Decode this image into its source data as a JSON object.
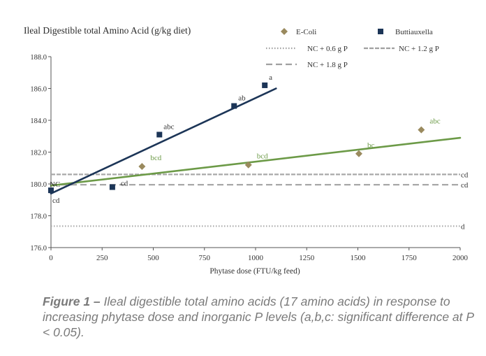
{
  "chart_data": {
    "type": "scatter",
    "title": "Ileal Digestible total Amino Acid  (g/kg diet)",
    "xlabel": "Phytase dose (FTU/kg feed)",
    "ylabel": "",
    "xlim": [
      0,
      2000
    ],
    "ylim": [
      176.0,
      188.0
    ],
    "x_ticks": [
      0,
      250,
      500,
      750,
      1000,
      1250,
      1500,
      1750,
      2000
    ],
    "y_ticks": [
      "176.0",
      "178.0",
      "180.0",
      "182.0",
      "184.0",
      "186.0",
      "188.0"
    ],
    "grid": false,
    "legend_position": "top-right",
    "series": [
      {
        "name": "E-Coli",
        "color": "#9a8a5e",
        "marker": "diamond",
        "points": [
          {
            "x": 445,
            "y": 181.1,
            "label": "bcd"
          },
          {
            "x": 965,
            "y": 181.2,
            "label": "bcd"
          },
          {
            "x": 1505,
            "y": 181.9,
            "label": "bc"
          },
          {
            "x": 1810,
            "y": 183.4,
            "label": "abc"
          }
        ],
        "trend": {
          "color": "#6c9a47",
          "x0": 0,
          "y0": 179.9,
          "x1": 2000,
          "y1": 182.9
        }
      },
      {
        "name": "Buttiauxella",
        "color": "#1c3557",
        "marker": "square",
        "points": [
          {
            "x": 0,
            "y": 179.6,
            "label": "cd"
          },
          {
            "x": 300,
            "y": 179.8,
            "label": "cd"
          },
          {
            "x": 530,
            "y": 183.1,
            "label": "abc"
          },
          {
            "x": 895,
            "y": 184.9,
            "label": "ab"
          },
          {
            "x": 1045,
            "y": 186.2,
            "label": "a"
          }
        ],
        "trend": {
          "color": "#1c3557",
          "x0": 0,
          "y0": 179.4,
          "x1": 1100,
          "y1": 186.0
        }
      }
    ],
    "reference_lines": [
      {
        "name": "NC + 0.6 g P",
        "y": 177.35,
        "style": "dotted",
        "label": "d"
      },
      {
        "name": "NC + 1.2 g P",
        "y": 180.6,
        "style": "dashed",
        "label": "cd"
      },
      {
        "name": "NC + 1.8 g P",
        "y": 179.95,
        "style": "dashed-long",
        "label": "cd"
      }
    ],
    "annotation_nc": "NC"
  },
  "caption": {
    "figure_label": "Figure 1 –",
    "text": " Ileal digestible total amino acids (17 amino acids) in response to increasing phytase dose and inorganic P levels (a,b,c: significant difference at P < 0.05)."
  }
}
